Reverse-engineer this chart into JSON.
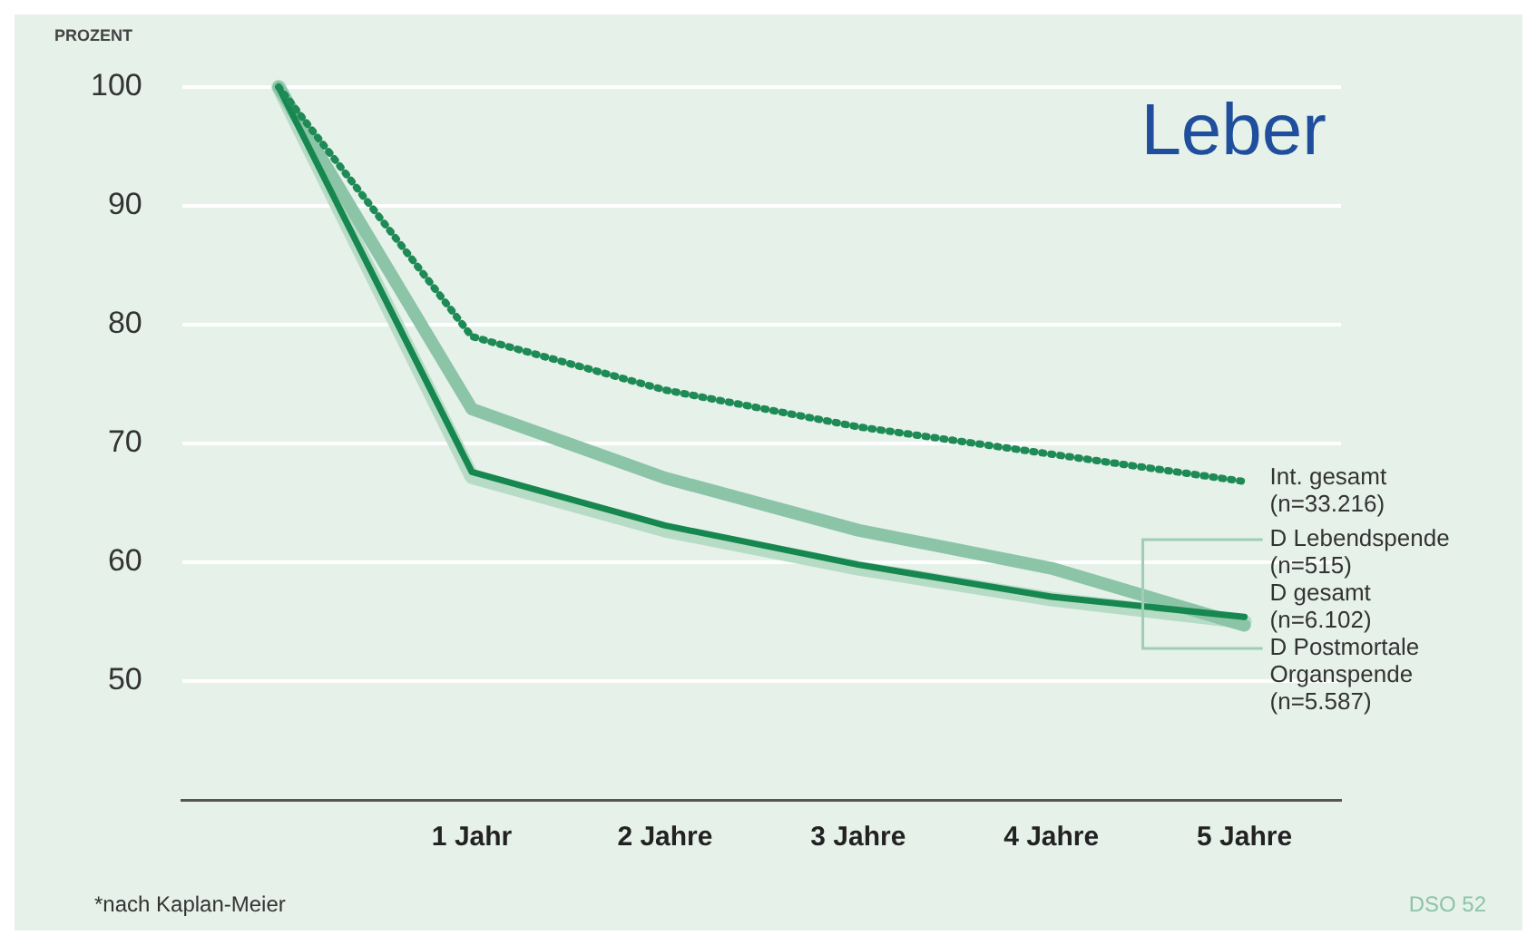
{
  "chart_data": {
    "type": "line",
    "title": "Leber",
    "ylabel": "PROZENT",
    "categories": [
      null,
      "1 Jahr",
      "2 Jahre",
      "3 Jahre",
      "4 Jahre",
      "5 Jahre"
    ],
    "series": [
      {
        "name": "D Postmortale\nOrganspende\n(n=5.587)",
        "color": "#b7dcc6",
        "values": [
          100,
          67.2,
          62.7,
          59.5,
          56.9,
          55.0
        ]
      },
      {
        "name": "D Lebendspende\n(n=515)",
        "color": "#8cc4a8",
        "values": [
          100,
          72.9,
          67.1,
          62.7,
          59.5,
          54.7
        ]
      },
      {
        "name": "D gesamt\n(n=6.102)",
        "color": "#16874f",
        "values": [
          100,
          67.6,
          63.1,
          59.8,
          57.1,
          55.4
        ]
      },
      {
        "name": "Int. gesamt\n(n=33.216)",
        "color": "#1e8a55",
        "line_style": "dotted",
        "values": [
          100,
          79.0,
          74.5,
          71.4,
          69.1,
          66.8
        ]
      }
    ],
    "ylim": [
      40,
      100
    ],
    "yticks": [
      50,
      60,
      70,
      80,
      90,
      100
    ],
    "grid": "y",
    "legend": false,
    "marker": "none",
    "annotations": [
      "*nach Kaplan-Meier",
      "DSO 52"
    ]
  }
}
